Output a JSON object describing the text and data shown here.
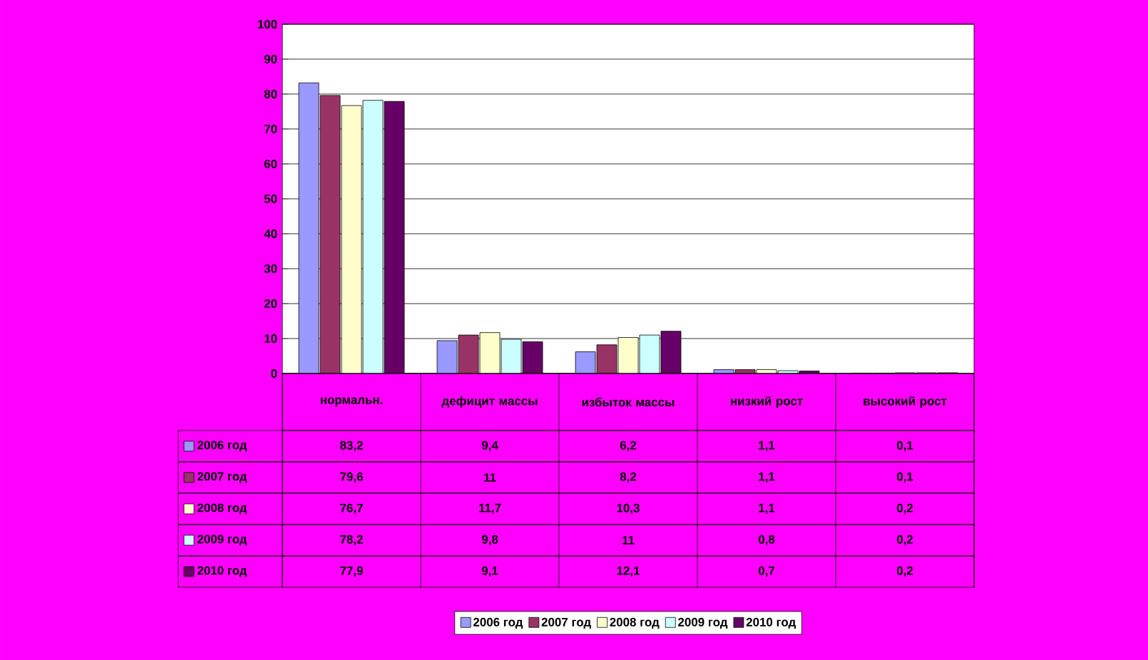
{
  "chart_data": {
    "type": "bar",
    "categories": [
      "нормальн.",
      "дефицит массы",
      "избыток массы",
      "низкий рост",
      "высокий рост"
    ],
    "series": [
      {
        "name": "2006 год",
        "color": "#9999ff",
        "values": [
          83.2,
          9.4,
          6.2,
          1.1,
          0.1
        ],
        "value_labels": [
          "83,2",
          "9,4",
          "6,2",
          "1,1",
          "0,1"
        ]
      },
      {
        "name": "2007 год",
        "color": "#993366",
        "values": [
          79.6,
          11,
          8.2,
          1.1,
          0.1
        ],
        "value_labels": [
          "79,6",
          "11",
          "8,2",
          "1,1",
          "0,1"
        ]
      },
      {
        "name": "2008 год",
        "color": "#ffffcc",
        "values": [
          76.7,
          11.7,
          10.3,
          1.1,
          0.2
        ],
        "value_labels": [
          "76,7",
          "11,7",
          "10,3",
          "1,1",
          "0,2"
        ]
      },
      {
        "name": "2009 год",
        "color": "#ccffff",
        "values": [
          78.2,
          9.8,
          11,
          0.8,
          0.2
        ],
        "value_labels": [
          "78,2",
          "9,8",
          "11",
          "0,8",
          "0,2"
        ]
      },
      {
        "name": "2010 год",
        "color": "#660066",
        "values": [
          77.9,
          9.1,
          12.1,
          0.7,
          0.2
        ],
        "value_labels": [
          "77,9",
          "9,1",
          "12,1",
          "0,7",
          "0,2"
        ]
      }
    ],
    "ylim": [
      0,
      100
    ],
    "yticks": [
      0,
      10,
      20,
      30,
      40,
      50,
      60,
      70,
      80,
      90,
      100
    ],
    "grid": "y",
    "legend": "bottom"
  }
}
